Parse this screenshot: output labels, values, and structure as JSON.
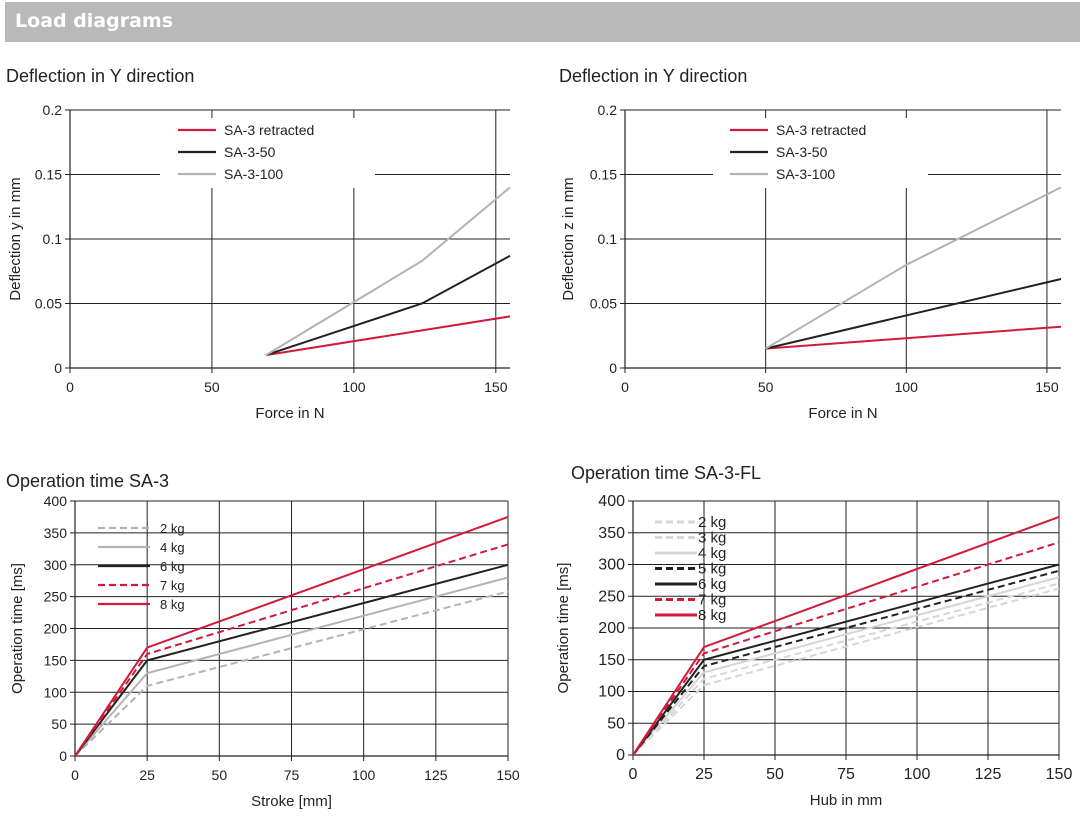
{
  "header": {
    "title": "Load diagrams"
  },
  "colors": {
    "red": "#d21a3a",
    "black": "#222222",
    "gray": "#b3b3b3",
    "lightgray": "#d6d6d6",
    "header": "#b9b9b9"
  },
  "chart_data": [
    {
      "type": "line",
      "title": "Deflection in Y direction",
      "xlabel": "Force in N",
      "ylabel": "Deflection y in mm",
      "xlim": [
        0,
        155
      ],
      "ylim": [
        0,
        0.2
      ],
      "xticks": [
        0,
        50,
        100,
        150
      ],
      "yticks": [
        0,
        0.05,
        0.1,
        0.15,
        0.2
      ],
      "xtick_labels": [
        "0",
        "50",
        "100",
        "150"
      ],
      "ytick_labels": [
        "0",
        "0.05",
        "0.1",
        "0.15",
        "0.2"
      ],
      "grid": true,
      "legend": "top-center",
      "series": [
        {
          "name": "SA-3 retracted",
          "color": "red",
          "dash": false,
          "points": [
            [
              69,
              0.01
            ],
            [
              155,
              0.04
            ]
          ]
        },
        {
          "name": "SA-3-50",
          "color": "black",
          "dash": false,
          "points": [
            [
              69,
              0.01
            ],
            [
              124,
              0.05
            ],
            [
              155,
              0.087
            ]
          ]
        },
        {
          "name": "SA-3-100",
          "color": "gray",
          "dash": false,
          "points": [
            [
              69,
              0.01
            ],
            [
              124,
              0.083
            ],
            [
              155,
              0.14
            ]
          ]
        }
      ]
    },
    {
      "type": "line",
      "title": "Deflection in Y direction",
      "xlabel": "Force in N",
      "ylabel": "Deflection z in mm",
      "xlim": [
        0,
        155
      ],
      "ylim": [
        0,
        0.2
      ],
      "xticks": [
        0,
        50,
        100,
        150
      ],
      "yticks": [
        0,
        0.05,
        0.1,
        0.15,
        0.2
      ],
      "xtick_labels": [
        "0",
        "50",
        "100",
        "150"
      ],
      "ytick_labels": [
        "0",
        "0.05",
        "0.1",
        "0.15",
        "0.2"
      ],
      "grid": true,
      "legend": "top-center",
      "series": [
        {
          "name": "SA-3 retracted",
          "color": "red",
          "dash": false,
          "points": [
            [
              50,
              0.015
            ],
            [
              155,
              0.032
            ]
          ]
        },
        {
          "name": "SA-3-50",
          "color": "black",
          "dash": false,
          "points": [
            [
              50,
              0.015
            ],
            [
              155,
              0.069
            ]
          ]
        },
        {
          "name": "SA-3-100",
          "color": "gray",
          "dash": false,
          "points": [
            [
              50,
              0.015
            ],
            [
              100,
              0.08
            ],
            [
              155,
              0.14
            ]
          ]
        }
      ]
    },
    {
      "type": "line",
      "title": "Operation time SA-3",
      "xlabel": "Stroke [mm]",
      "ylabel": "Operation time [ms]",
      "xlim": [
        0,
        150
      ],
      "ylim": [
        0,
        400
      ],
      "xticks": [
        0,
        25,
        50,
        75,
        100,
        125,
        150
      ],
      "yticks": [
        0,
        50,
        100,
        150,
        200,
        250,
        300,
        350,
        400
      ],
      "xtick_labels": [
        "0",
        "25",
        "50",
        "75",
        "100",
        "125",
        "150"
      ],
      "ytick_labels": [
        "0",
        "50",
        "100",
        "150",
        "200",
        "250",
        "300",
        "350",
        "400"
      ],
      "grid": true,
      "legend": "top-left",
      "series": [
        {
          "name": "2 kg",
          "color": "gray",
          "dash": true,
          "points": [
            [
              0,
              0
            ],
            [
              25,
              110
            ],
            [
              150,
              258
            ]
          ]
        },
        {
          "name": "4 kg",
          "color": "gray",
          "dash": false,
          "points": [
            [
              0,
              0
            ],
            [
              25,
              130
            ],
            [
              150,
              280
            ]
          ]
        },
        {
          "name": "6 kg",
          "color": "black",
          "dash": false,
          "points": [
            [
              0,
              0
            ],
            [
              25,
              150
            ],
            [
              150,
              300
            ]
          ]
        },
        {
          "name": "7 kg",
          "color": "red",
          "dash": true,
          "points": [
            [
              0,
              0
            ],
            [
              25,
              160
            ],
            [
              150,
              332
            ]
          ]
        },
        {
          "name": "8 kg",
          "color": "red",
          "dash": false,
          "points": [
            [
              0,
              0
            ],
            [
              25,
              170
            ],
            [
              150,
              375
            ]
          ]
        }
      ]
    },
    {
      "type": "line",
      "title": "Operation time SA-3-FL",
      "xlabel": "Hub in mm",
      "ylabel": "Operation time [ms]",
      "xlim": [
        0,
        150
      ],
      "ylim": [
        0,
        400
      ],
      "xticks": [
        0,
        25,
        50,
        75,
        100,
        125,
        150
      ],
      "yticks": [
        0,
        50,
        100,
        150,
        200,
        250,
        300,
        350,
        400
      ],
      "xtick_labels": [
        "0",
        "25",
        "50",
        "75",
        "100",
        "125",
        "150"
      ],
      "ytick_labels": [
        "0",
        "50",
        "100",
        "150",
        "200",
        "250",
        "300",
        "350",
        "400"
      ],
      "grid": true,
      "legend": "top-left",
      "series": [
        {
          "name": "2 kg",
          "color": "lightgray",
          "dash": true,
          "points": [
            [
              0,
              0
            ],
            [
              25,
              110
            ],
            [
              150,
              262
            ]
          ]
        },
        {
          "name": "3 kg",
          "color": "lightgray",
          "dash": true,
          "points": [
            [
              0,
              0
            ],
            [
              25,
              120
            ],
            [
              150,
              270
            ]
          ]
        },
        {
          "name": "4 kg",
          "color": "lightgray",
          "dash": false,
          "points": [
            [
              0,
              0
            ],
            [
              25,
              130
            ],
            [
              150,
              280
            ]
          ]
        },
        {
          "name": "5 kg",
          "color": "black",
          "dash": true,
          "points": [
            [
              0,
              0
            ],
            [
              25,
              140
            ],
            [
              150,
              290
            ]
          ]
        },
        {
          "name": "6 kg",
          "color": "black",
          "dash": false,
          "points": [
            [
              0,
              0
            ],
            [
              25,
              150
            ],
            [
              150,
              300
            ]
          ]
        },
        {
          "name": "7 kg",
          "color": "red",
          "dash": true,
          "points": [
            [
              0,
              0
            ],
            [
              25,
              160
            ],
            [
              150,
              335
            ]
          ]
        },
        {
          "name": "8 kg",
          "color": "red",
          "dash": false,
          "points": [
            [
              0,
              0
            ],
            [
              25,
              170
            ],
            [
              150,
              375
            ]
          ]
        }
      ]
    }
  ]
}
